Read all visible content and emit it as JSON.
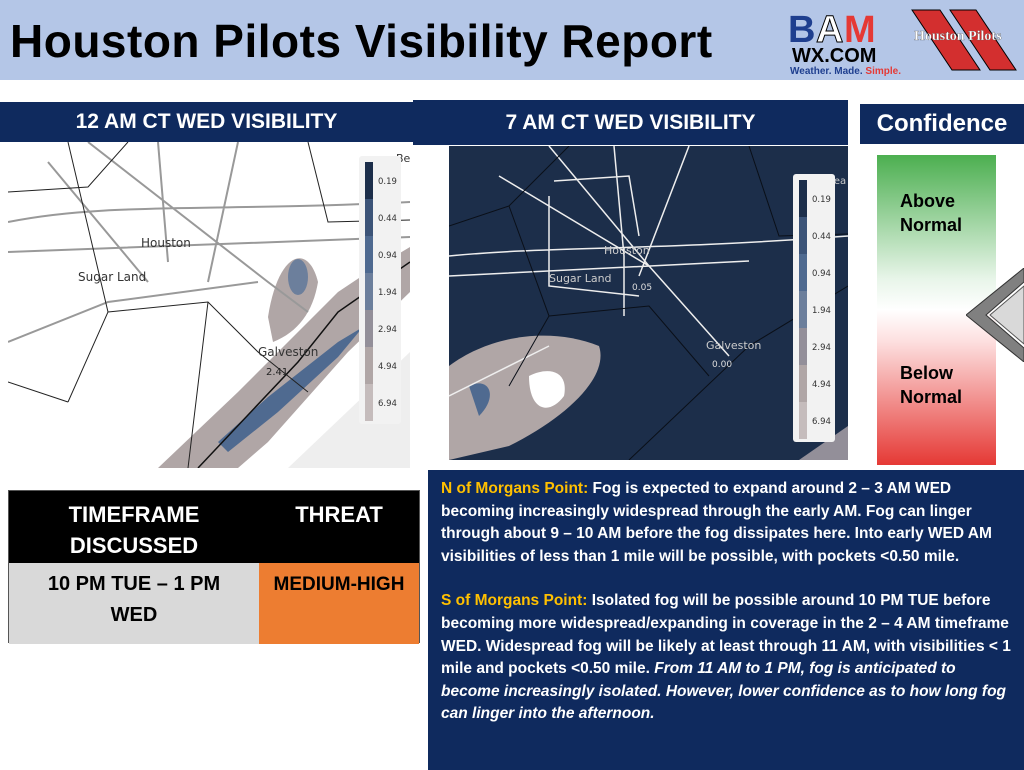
{
  "header": {
    "title": "Houston Pilots Visibility Report",
    "logo_bam": "BAM WX.COM Weather. Made. Simple.",
    "logo_pilots": "Houston Pilots"
  },
  "panels": [
    {
      "title": "12 AM CT WED VISIBILITY",
      "labels": [
        "Houston",
        "Sugar Land",
        "Galveston",
        "2.41",
        "Bea"
      ]
    },
    {
      "title": "7 AM CT WED VISIBILITY",
      "labels": [
        "Houston",
        "Sugar Land",
        "Galveston",
        "0.05",
        "0.00",
        "Bea"
      ]
    }
  ],
  "legend": {
    "values": [
      "0.19",
      "0.44",
      "0.94",
      "1.94",
      "2.94",
      "4.94",
      "6.94"
    ],
    "colors": [
      "#1c2e4a",
      "#3c5478",
      "#4f6a90",
      "#6c7f9c",
      "#938f99",
      "#b0a6a6",
      "#c5bcbc"
    ]
  },
  "confidence": {
    "title": "Confidence",
    "above": "Above Normal",
    "below": "Below Normal",
    "level": "slightly above middle"
  },
  "table": {
    "headers": [
      "TIMEFRAME DISCUSSED",
      "THREAT"
    ],
    "timeframe": "10 PM TUE – 1 PM WED",
    "threat": "MEDIUM-HIGH",
    "threat_color": "#ed7d31"
  },
  "discussion": {
    "north_label": "N of Morgans Point:",
    "north_text": " Fog is expected to expand around 2 – 3 AM WED becoming increasingly widespread through the early AM. Fog can linger through about 9 – 10 AM before the fog dissipates here. Into early WED AM visibilities of less than 1 mile will be possible, with pockets <0.50 mile.",
    "south_label": "S of Morgans Point:",
    "south_text": "  Isolated fog will be possible around 10 PM TUE before becoming more widespread/expanding in coverage in the 2 – 4 AM timeframe WED. Widespread fog will be likely at least through 11 AM, with visibilities < 1 mile and pockets <0.50 mile. ",
    "south_italic": "From 11 AM to 1 PM, fog is anticipated to become increasingly isolated. However, lower confidence as to how long fog can linger into the afternoon."
  }
}
